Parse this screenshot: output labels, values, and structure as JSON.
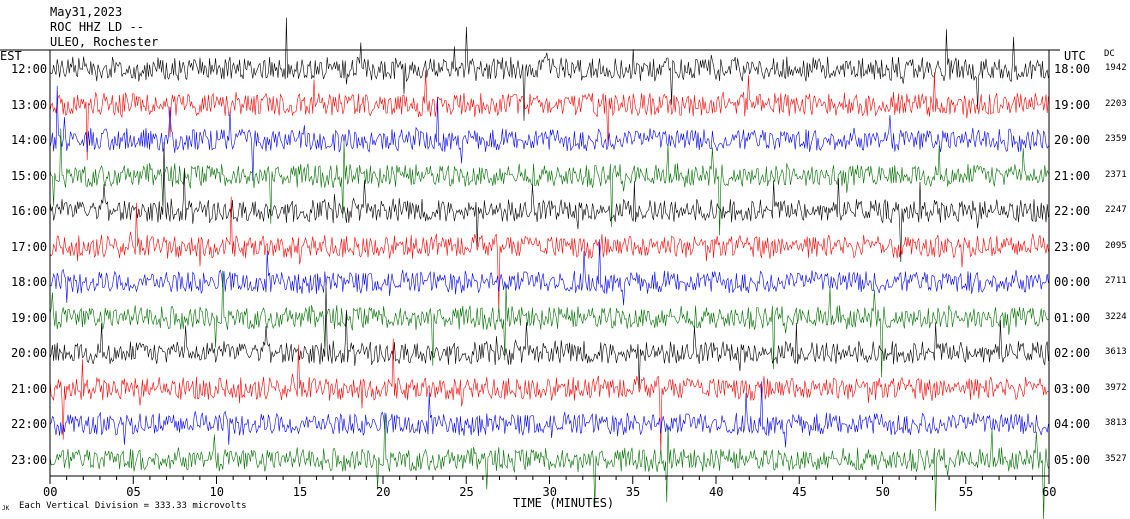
{
  "header": {
    "date": "May31,2023",
    "station": "ROC HHZ LD --",
    "network": "ULEO, Rochester"
  },
  "left_axis_label": "EST",
  "right_axis_label": "UTC",
  "dc_label": "DC",
  "footer": {
    "scale_note": "Each Vertical Division = 333.33 microvolts",
    "small_mark": "JK"
  },
  "colors": {
    "sequence": [
      "#000000",
      "#ff0000",
      "#0000ff",
      "#007000"
    ],
    "background": "#ffffff"
  },
  "chart_data": {
    "type": "line",
    "title": "",
    "xlabel": "TIME (MINUTES)",
    "ylabel": "",
    "xlim": [
      0,
      60
    ],
    "x_ticks": [
      "00",
      "05",
      "10",
      "15",
      "20",
      "25",
      "30",
      "35",
      "40",
      "45",
      "50",
      "55",
      "60"
    ],
    "rows": [
      {
        "est": "12:00",
        "utc": "18:00",
        "dc": "1942",
        "color": "#000000"
      },
      {
        "est": "13:00",
        "utc": "19:00",
        "dc": "2203",
        "color": "#ff0000"
      },
      {
        "est": "14:00",
        "utc": "20:00",
        "dc": "2359",
        "color": "#0000ff"
      },
      {
        "est": "15:00",
        "utc": "21:00",
        "dc": "2371",
        "color": "#007000"
      },
      {
        "est": "16:00",
        "utc": "22:00",
        "dc": "2247",
        "color": "#000000"
      },
      {
        "est": "17:00",
        "utc": "23:00",
        "dc": "2095",
        "color": "#ff0000"
      },
      {
        "est": "18:00",
        "utc": "00:00",
        "dc": "2711",
        "color": "#0000ff"
      },
      {
        "est": "19:00",
        "utc": "01:00",
        "dc": "3224",
        "color": "#007000"
      },
      {
        "est": "20:00",
        "utc": "02:00",
        "dc": "3613",
        "color": "#000000"
      },
      {
        "est": "21:00",
        "utc": "03:00",
        "dc": "3972",
        "color": "#ff0000"
      },
      {
        "est": "22:00",
        "utc": "04:00",
        "dc": "3813",
        "color": "#0000ff"
      },
      {
        "est": "23:00",
        "utc": "05:00",
        "dc": "3527",
        "color": "#007000"
      }
    ]
  }
}
